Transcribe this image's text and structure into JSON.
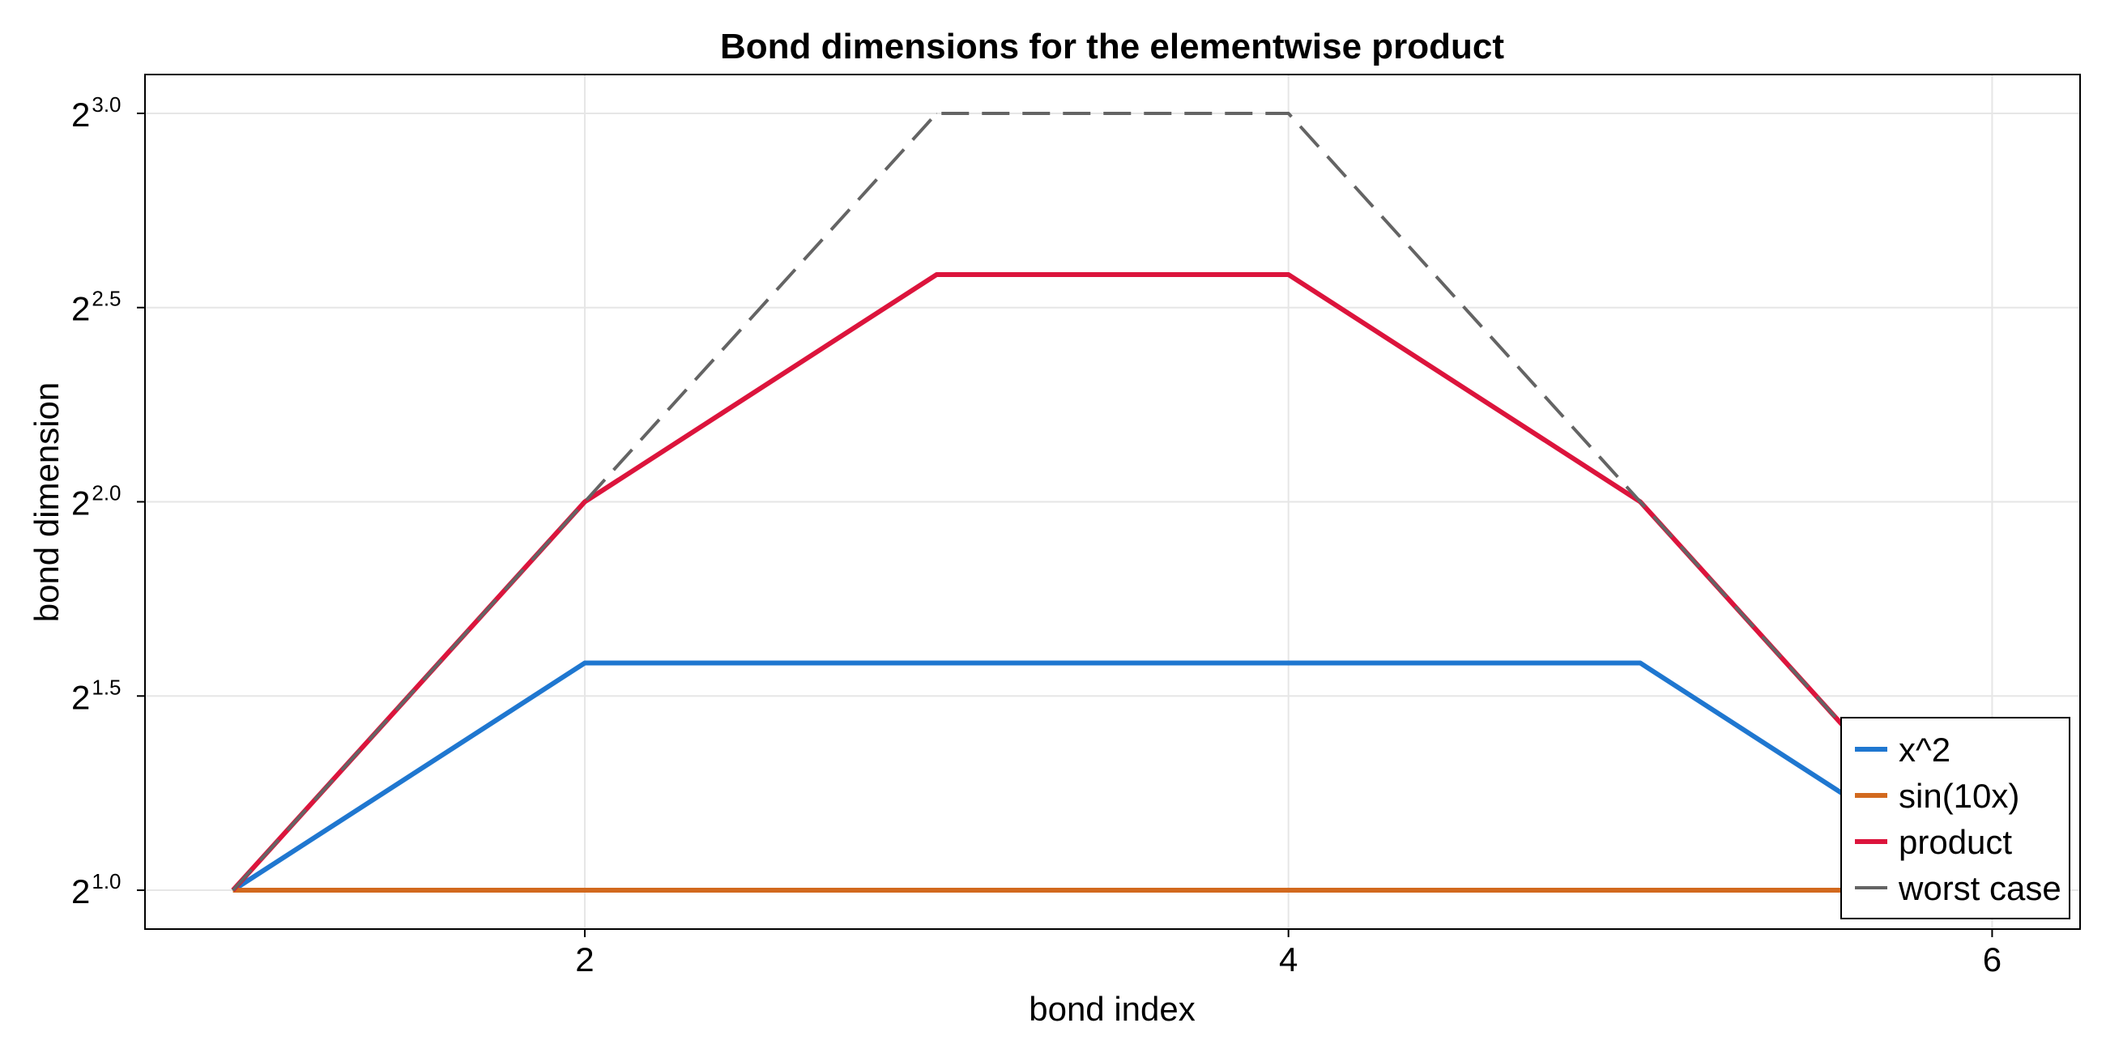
{
  "chart_data": {
    "type": "line",
    "title": "Bond dimensions for the elementwise product",
    "xlabel": "bond index",
    "ylabel": "bond dimension",
    "y_scale": "log2",
    "xlim": [
      0.75,
      6.25
    ],
    "ylim_exponent": [
      0.9,
      3.1
    ],
    "x_ticks": [
      2,
      4,
      6
    ],
    "y_ticks": [
      {
        "base": "2",
        "exp": "1.0",
        "value": 1.0
      },
      {
        "base": "2",
        "exp": "1.5",
        "value": 1.5
      },
      {
        "base": "2",
        "exp": "2.0",
        "value": 2.0
      },
      {
        "base": "2",
        "exp": "2.5",
        "value": 2.5
      },
      {
        "base": "2",
        "exp": "3.0",
        "value": 3.0
      }
    ],
    "grid": true,
    "legend_position": "bottom-right",
    "x": [
      1,
      2,
      3,
      4,
      5,
      6
    ],
    "series": [
      {
        "name": "x^2",
        "color": "#1f77d0",
        "dash": "solid",
        "values": [
          2,
          3,
          3,
          3,
          3,
          2
        ]
      },
      {
        "name": "sin(10x)",
        "color": "#d2691e",
        "dash": "solid",
        "values": [
          2,
          2,
          2,
          2,
          2,
          2
        ]
      },
      {
        "name": "product",
        "color": "#dc143c",
        "dash": "solid",
        "values": [
          2,
          4,
          6,
          6,
          4,
          2
        ]
      },
      {
        "name": "worst case",
        "color": "#646464",
        "dash": "dashed",
        "values": [
          2,
          4,
          8,
          8,
          4,
          2
        ]
      }
    ]
  }
}
